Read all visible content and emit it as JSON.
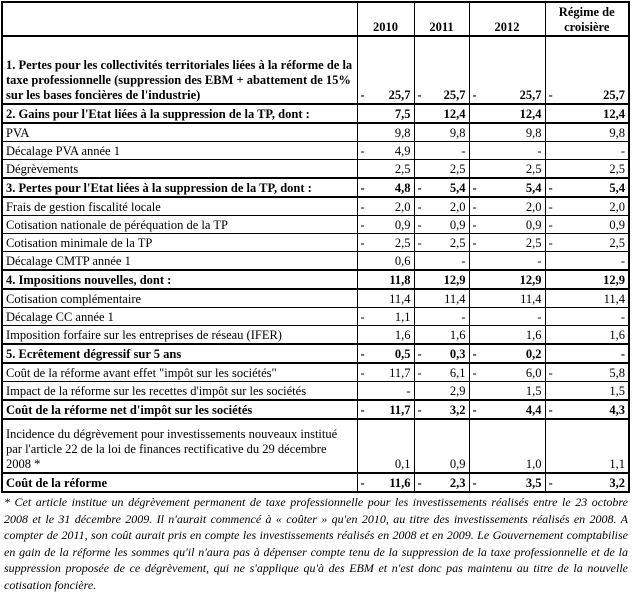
{
  "table": {
    "headers": [
      "",
      "2010",
      "2011",
      "2012",
      "Régime de croisière"
    ],
    "rows": [
      {
        "label": "1. Pertes pour les collectivités territoriales liées à la réforme de la taxe professionnelle (suppression des EBM + abattement de 15% sur les bases foncières de l'industrie)",
        "bold": true,
        "values": [
          {
            "neg": "-",
            "v": "25,7"
          },
          {
            "neg": "-",
            "v": "25,7"
          },
          {
            "neg": "-",
            "v": "25,7"
          },
          {
            "neg": "-",
            "v": "25,7"
          }
        ]
      },
      {
        "label": "2. Gains pour l'Etat liées à la suppression de la TP, dont :",
        "bold": true,
        "values": [
          {
            "neg": "",
            "v": "7,5"
          },
          {
            "neg": "",
            "v": "12,4"
          },
          {
            "neg": "",
            "v": "12,4"
          },
          {
            "neg": "",
            "v": "12,4"
          }
        ]
      },
      {
        "label": "PVA",
        "bold": false,
        "values": [
          {
            "neg": "",
            "v": "9,8"
          },
          {
            "neg": "",
            "v": "9,8"
          },
          {
            "neg": "",
            "v": "9,8"
          },
          {
            "neg": "",
            "v": "9,8"
          }
        ]
      },
      {
        "label": "Décalage PVA année 1",
        "bold": false,
        "values": [
          {
            "neg": "-",
            "v": "4,9"
          },
          {
            "neg": "",
            "v": "-"
          },
          {
            "neg": "",
            "v": "-"
          },
          {
            "neg": "",
            "v": "-"
          }
        ]
      },
      {
        "label": "Dégrèvements",
        "bold": false,
        "values": [
          {
            "neg": "",
            "v": "2,5"
          },
          {
            "neg": "",
            "v": "2,5"
          },
          {
            "neg": "",
            "v": "2,5"
          },
          {
            "neg": "",
            "v": "2,5"
          }
        ]
      },
      {
        "label": "3. Pertes pour l'Etat liées à la suppression de la TP, dont :",
        "bold": true,
        "values": [
          {
            "neg": "-",
            "v": "4,8"
          },
          {
            "neg": "-",
            "v": "5,4"
          },
          {
            "neg": "-",
            "v": "5,4"
          },
          {
            "neg": "-",
            "v": "5,4"
          }
        ]
      },
      {
        "label": "Frais de gestion fiscalité locale",
        "bold": false,
        "values": [
          {
            "neg": "-",
            "v": "2,0"
          },
          {
            "neg": "-",
            "v": "2,0"
          },
          {
            "neg": "-",
            "v": "2,0"
          },
          {
            "neg": "-",
            "v": "2,0"
          }
        ]
      },
      {
        "label": "Cotisation nationale de péréquation de la TP",
        "bold": false,
        "values": [
          {
            "neg": "-",
            "v": "0,9"
          },
          {
            "neg": "-",
            "v": "0,9"
          },
          {
            "neg": "-",
            "v": "0,9"
          },
          {
            "neg": "-",
            "v": "0,9"
          }
        ]
      },
      {
        "label": "Cotisation minimale de la TP",
        "bold": false,
        "values": [
          {
            "neg": "-",
            "v": "2,5"
          },
          {
            "neg": "-",
            "v": "2,5"
          },
          {
            "neg": "-",
            "v": "2,5"
          },
          {
            "neg": "-",
            "v": "2,5"
          }
        ]
      },
      {
        "label": "Décalage CMTP année 1",
        "bold": false,
        "values": [
          {
            "neg": "",
            "v": "0,6"
          },
          {
            "neg": "",
            "v": "-"
          },
          {
            "neg": "",
            "v": "-"
          },
          {
            "neg": "",
            "v": "-"
          }
        ]
      },
      {
        "label": "4. Impositions nouvelles, dont :",
        "bold": true,
        "values": [
          {
            "neg": "",
            "v": "11,8"
          },
          {
            "neg": "",
            "v": "12,9"
          },
          {
            "neg": "",
            "v": "12,9"
          },
          {
            "neg": "",
            "v": "12,9"
          }
        ]
      },
      {
        "label": "Cotisation complémentaire",
        "bold": false,
        "values": [
          {
            "neg": "",
            "v": "11,4"
          },
          {
            "neg": "",
            "v": "11,4"
          },
          {
            "neg": "",
            "v": "11,4"
          },
          {
            "neg": "",
            "v": "11,4"
          }
        ]
      },
      {
        "label": "Décalage CC année 1",
        "bold": false,
        "values": [
          {
            "neg": "-",
            "v": "1,1"
          },
          {
            "neg": "",
            "v": "-"
          },
          {
            "neg": "",
            "v": "-"
          },
          {
            "neg": "",
            "v": "-"
          }
        ]
      },
      {
        "label": "Imposition forfaire sur les entreprises de réseau (IFER)",
        "bold": false,
        "values": [
          {
            "neg": "",
            "v": "1,6"
          },
          {
            "neg": "",
            "v": "1,6"
          },
          {
            "neg": "",
            "v": "1,6"
          },
          {
            "neg": "",
            "v": "1,6"
          }
        ]
      },
      {
        "label": "5. Ecrêtement dégressif sur 5 ans",
        "bold": true,
        "values": [
          {
            "neg": "-",
            "v": "0,5"
          },
          {
            "neg": "-",
            "v": "0,3"
          },
          {
            "neg": "-",
            "v": "0,2"
          },
          {
            "neg": "",
            "v": "-"
          }
        ]
      },
      {
        "label": "Coût de la réforme avant effet \"impôt sur les sociétés\"",
        "bold": false,
        "values": [
          {
            "neg": "-",
            "v": "11,7"
          },
          {
            "neg": "-",
            "v": "6,1"
          },
          {
            "neg": "-",
            "v": "6,0"
          },
          {
            "neg": "-",
            "v": "5,8"
          }
        ]
      },
      {
        "label": "Impact de la réforme sur les recettes d'impôt sur les sociétés",
        "bold": false,
        "values": [
          {
            "neg": "",
            "v": "-"
          },
          {
            "neg": "",
            "v": "2,9"
          },
          {
            "neg": "",
            "v": "1,5"
          },
          {
            "neg": "",
            "v": "1,5"
          }
        ]
      },
      {
        "label": "Coût de la réforme net d'impôt sur les sociétés",
        "bold": true,
        "values": [
          {
            "neg": "-",
            "v": "11,7"
          },
          {
            "neg": "-",
            "v": "3,2"
          },
          {
            "neg": "-",
            "v": "4,4"
          },
          {
            "neg": "-",
            "v": "4,3"
          }
        ]
      },
      {
        "label": "Incidence du dégrèvement pour investissements nouveaux institué par l'article 22 de la loi de finances rectificative du 29 décembre 2008 *",
        "bold": false,
        "values": [
          {
            "neg": "",
            "v": "0,1"
          },
          {
            "neg": "",
            "v": "0,9"
          },
          {
            "neg": "",
            "v": "1,0"
          },
          {
            "neg": "",
            "v": "1,1"
          }
        ]
      },
      {
        "label": "Coût de la réforme",
        "bold": true,
        "values": [
          {
            "neg": "-",
            "v": "11,6"
          },
          {
            "neg": "-",
            "v": "2,3"
          },
          {
            "neg": "-",
            "v": "3,5"
          },
          {
            "neg": "-",
            "v": "3,2"
          }
        ]
      }
    ]
  },
  "footnote": "* Cet article institue un dégrèvement permanent de taxe professionnelle pour les investissements réalisés entre le 23 octobre 2008 et le 31 décembre 2009. Il n'aurait commencé à « coûter » qu'en 2010, au titre des investissements réalisés en 2008. A compter de 2011, son coût aurait pris en compte les investissements réalisés en 2008 et en 2009. Le Gouvernement comptabilise en gain de la réforme les sommes qu'il n'aura pas à dépenser compte tenu de la suppression de la taxe professionnelle et de la suppression proposée de ce dégrèvement, qui ne s'applique qu'à des EBM et n'est donc pas maintenu au titre de la nouvelle cotisation foncière."
}
